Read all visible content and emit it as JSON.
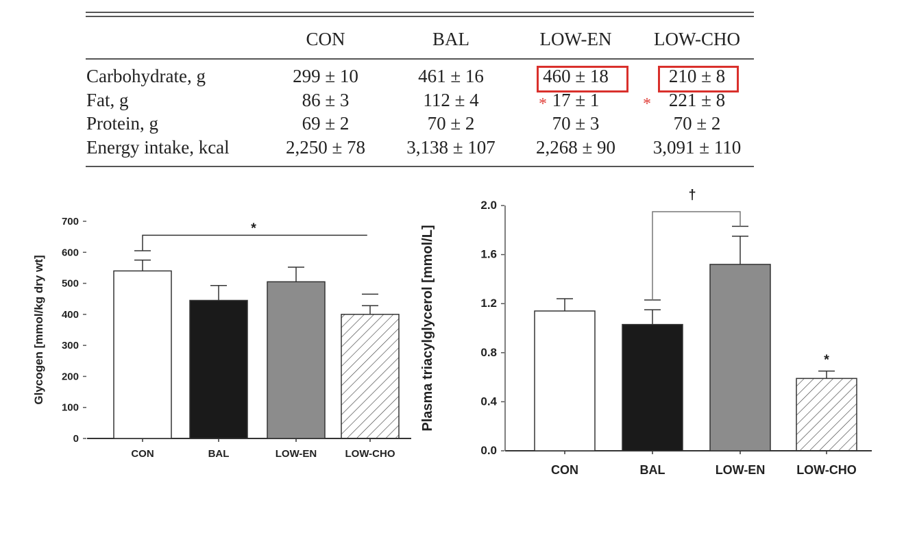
{
  "table": {
    "columns": [
      "CON",
      "BAL",
      "LOW-EN",
      "LOW-CHO"
    ],
    "rows": [
      {
        "label": "Carbohydrate, g",
        "values": [
          "299 ± 10",
          "461 ± 16",
          "460 ± 18",
          "210 ± 8"
        ]
      },
      {
        "label": "Fat, g",
        "values": [
          "86 ± 3",
          "112 ± 4",
          "17 ± 1",
          "221 ± 8"
        ]
      },
      {
        "label": "Protein, g",
        "values": [
          "69 ± 2",
          "70 ± 2",
          "70 ± 3",
          "70 ± 2"
        ]
      },
      {
        "label": "Energy intake, kcal",
        "values": [
          "2,250 ± 78",
          "3,138 ± 107",
          "2,268 ± 90",
          "3,091 ± 110"
        ]
      }
    ],
    "highlighted_cells": [
      "Carbohydrate LOW-EN",
      "Carbohydrate LOW-CHO"
    ],
    "marked_cells": [
      "Fat LOW-EN",
      "Fat LOW-CHO"
    ],
    "mark_symbol": "*",
    "highlight_color": "#d9302c"
  },
  "chart_data": [
    {
      "type": "bar",
      "categories": [
        "CON",
        "BAL",
        "LOW-EN",
        "LOW-CHO"
      ],
      "values": [
        540,
        445,
        505,
        400
      ],
      "error_upper": [
        575,
        493,
        552,
        428
      ],
      "extra_caps": [
        605,
        null,
        null,
        465
      ],
      "fills": [
        "#ffffff",
        "#1a1a1a",
        "#8c8c8c",
        "hatched"
      ],
      "ylabel": "Glycogen [mmol/kg dry wt]",
      "xlabel": "",
      "ylim": [
        0,
        700
      ],
      "yticks": [
        "0",
        "100",
        "200",
        "300",
        "400",
        "500",
        "600",
        "700"
      ],
      "annotations": [
        {
          "type": "bracket",
          "from": "CON",
          "to": "LOW-CHO",
          "level": 655,
          "label": "*"
        }
      ],
      "grid": false
    },
    {
      "type": "bar",
      "categories": [
        "CON",
        "BAL",
        "LOW-EN",
        "LOW-CHO"
      ],
      "values": [
        1.14,
        1.03,
        1.52,
        0.59
      ],
      "error_upper": [
        1.24,
        1.15,
        1.75,
        0.65
      ],
      "extra_caps": [
        null,
        1.23,
        1.83,
        null
      ],
      "fills": [
        "#ffffff",
        "#1a1a1a",
        "#8c8c8c",
        "hatched"
      ],
      "ylabel": "Plasma triacylglycerol [mmol/L]",
      "xlabel": "",
      "ylim": [
        0,
        2.0
      ],
      "yticks": [
        "0.0",
        "0.4",
        "0.8",
        "1.2",
        "1.6",
        "2.0"
      ],
      "annotations": [
        {
          "type": "bracket",
          "from": "BAL",
          "to": "LOW-EN",
          "level": 1.95,
          "label": "†"
        },
        {
          "type": "marker",
          "at": "LOW-CHO",
          "label": "*"
        }
      ],
      "grid": false
    }
  ]
}
